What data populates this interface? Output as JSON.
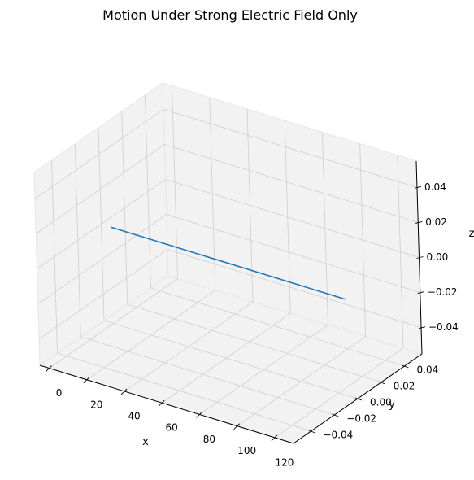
{
  "chart_data": {
    "type": "line",
    "projection": "3d",
    "title": "Motion Under Strong Electric Field Only",
    "xlabel": "x",
    "ylabel": "y",
    "zlabel": "z",
    "xlim": [
      -5,
      130
    ],
    "ylim": [
      -0.055,
      0.055
    ],
    "zlim": [
      -0.055,
      0.055
    ],
    "x_ticks": [
      0,
      20,
      40,
      60,
      80,
      100,
      120
    ],
    "x_tick_labels": [
      "0",
      "20",
      "40",
      "60",
      "80",
      "100",
      "120"
    ],
    "y_ticks": [
      -0.04,
      -0.02,
      0.0,
      0.02,
      0.04
    ],
    "y_tick_labels": [
      "−0.04",
      "−0.02",
      "0.00",
      "0.02",
      "0.04"
    ],
    "z_ticks": [
      -0.04,
      -0.02,
      0.0,
      0.02,
      0.04
    ],
    "z_tick_labels": [
      "−0.04",
      "−0.02",
      "0.00",
      "0.02",
      "0.04"
    ],
    "grid": true,
    "legend": null,
    "series": [
      {
        "color": "#1f77b4",
        "x": [
          0,
          125
        ],
        "y": [
          0,
          0
        ],
        "z": [
          0,
          0
        ]
      }
    ]
  },
  "colors": {
    "line": "#1f77b4",
    "pane_face": "#f2f2f2",
    "pane_edge": "#e6e6e6",
    "grid": "#d2d2d2"
  }
}
